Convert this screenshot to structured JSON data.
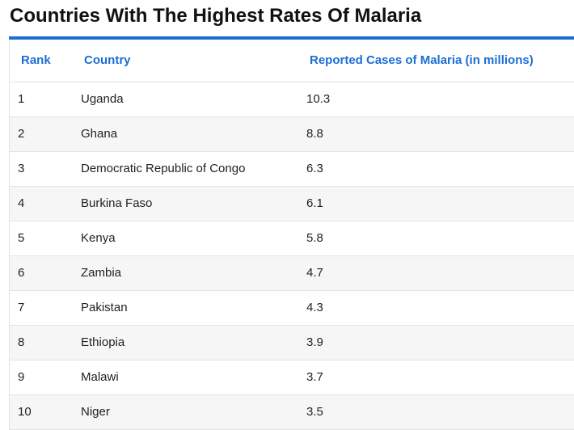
{
  "page": {
    "title": "Countries With The Highest Rates Of Malaria"
  },
  "colors": {
    "accent": "#1a6fd1",
    "header_text": "#1b6ed4",
    "row_alt": "#f6f6f6",
    "text": "#222222"
  },
  "table": {
    "headers": {
      "rank": "Rank",
      "country": "Country",
      "cases": "Reported Cases of Malaria (in millions)"
    },
    "rows": [
      {
        "rank": "1",
        "country": "Uganda",
        "cases": "10.3"
      },
      {
        "rank": "2",
        "country": "Ghana",
        "cases": "8.8"
      },
      {
        "rank": "3",
        "country": "Democratic Republic of Congo",
        "cases": "6.3"
      },
      {
        "rank": "4",
        "country": "Burkina Faso",
        "cases": "6.1"
      },
      {
        "rank": "5",
        "country": "Kenya",
        "cases": "5.8"
      },
      {
        "rank": "6",
        "country": "Zambia",
        "cases": "4.7"
      },
      {
        "rank": "7",
        "country": "Pakistan",
        "cases": "4.3"
      },
      {
        "rank": "8",
        "country": "Ethiopia",
        "cases": "3.9"
      },
      {
        "rank": "9",
        "country": "Malawi",
        "cases": "3.7"
      },
      {
        "rank": "10",
        "country": "Niger",
        "cases": "3.5"
      }
    ]
  }
}
